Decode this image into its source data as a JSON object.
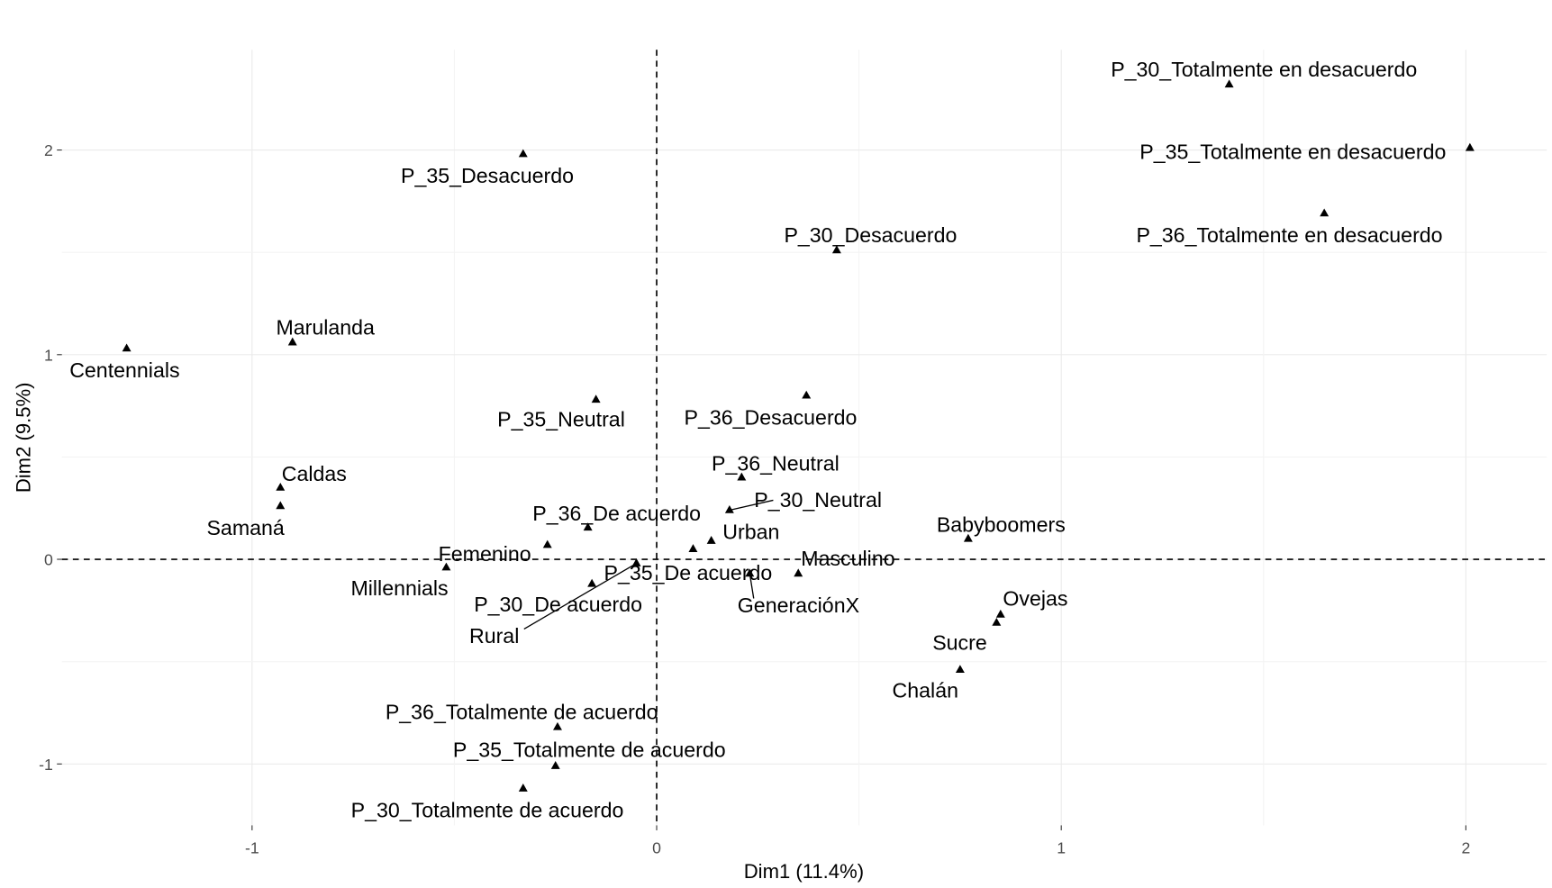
{
  "chart_data": {
    "type": "scatter",
    "xlabel": "Dim1 (11.4%)",
    "ylabel": "Dim2 (9.5%)",
    "xlim": [
      -1.47,
      2.2
    ],
    "ylim": [
      -1.3,
      2.49
    ],
    "xticks": [
      "-1",
      "0",
      "1",
      "2"
    ],
    "yticks": [
      "-1",
      "0",
      "1",
      "2"
    ],
    "grid": true,
    "reference_lines": "dashed at x=0 and y=0",
    "marker": "triangle",
    "colors": {
      "points": "#000000",
      "grid": "#ebebeb",
      "background": "#ffffff"
    },
    "points": [
      {
        "label": "P_30_Totalmente en desacuerdo",
        "x": 1.415,
        "y": 2.32
      },
      {
        "label": "P_35_Totalmente en desacuerdo",
        "x": 2.01,
        "y": 2.01
      },
      {
        "label": "P_36_Totalmente en desacuerdo",
        "x": 1.65,
        "y": 1.69
      },
      {
        "label": "P_35_Desacuerdo",
        "x": -0.33,
        "y": 1.98
      },
      {
        "label": "P_30_Desacuerdo",
        "x": 0.445,
        "y": 1.51
      },
      {
        "label": "Marulanda",
        "x": -0.9,
        "y": 1.06
      },
      {
        "label": "Centennials",
        "x": -1.31,
        "y": 1.03
      },
      {
        "label": "P_35_Neutral",
        "x": -0.15,
        "y": 0.78
      },
      {
        "label": "P_36_Desacuerdo",
        "x": 0.37,
        "y": 0.8
      },
      {
        "label": "P_36_Neutral",
        "x": 0.21,
        "y": 0.4
      },
      {
        "label": "P_30_Neutral",
        "x": 0.18,
        "y": 0.24
      },
      {
        "label": "Urban",
        "x": 0.135,
        "y": 0.09
      },
      {
        "label": "Caldas",
        "x": -0.93,
        "y": 0.35
      },
      {
        "label": "Samaná",
        "x": -0.93,
        "y": 0.26
      },
      {
        "label": "P_36_De acuerdo",
        "x": -0.17,
        "y": 0.155
      },
      {
        "label": "Femenino",
        "x": -0.27,
        "y": 0.07
      },
      {
        "label": "P_35_De acuerdo",
        "x": 0.09,
        "y": 0.05
      },
      {
        "label": "Rural",
        "x": -0.05,
        "y": -0.02
      },
      {
        "label": "P_30_De acuerdo",
        "x": -0.16,
        "y": -0.12
      },
      {
        "label": "GeneraciónX",
        "x": 0.23,
        "y": -0.07
      },
      {
        "label": "Masculino",
        "x": 0.35,
        "y": -0.07
      },
      {
        "label": "Millennials",
        "x": -0.52,
        "y": -0.04
      },
      {
        "label": "Babyboomers",
        "x": 0.77,
        "y": 0.1
      },
      {
        "label": "Ovejas",
        "x": 0.85,
        "y": -0.27
      },
      {
        "label": "Sucre",
        "x": 0.84,
        "y": -0.31
      },
      {
        "label": "Chalán",
        "x": 0.75,
        "y": -0.54
      },
      {
        "label": "P_36_Totalmente de acuerdo",
        "x": -0.245,
        "y": -0.82
      },
      {
        "label": "P_35_Totalmente de acuerdo",
        "x": -0.25,
        "y": -1.01
      },
      {
        "label": "P_30_Totalmente de acuerdo",
        "x": -0.33,
        "y": -1.12
      }
    ]
  }
}
